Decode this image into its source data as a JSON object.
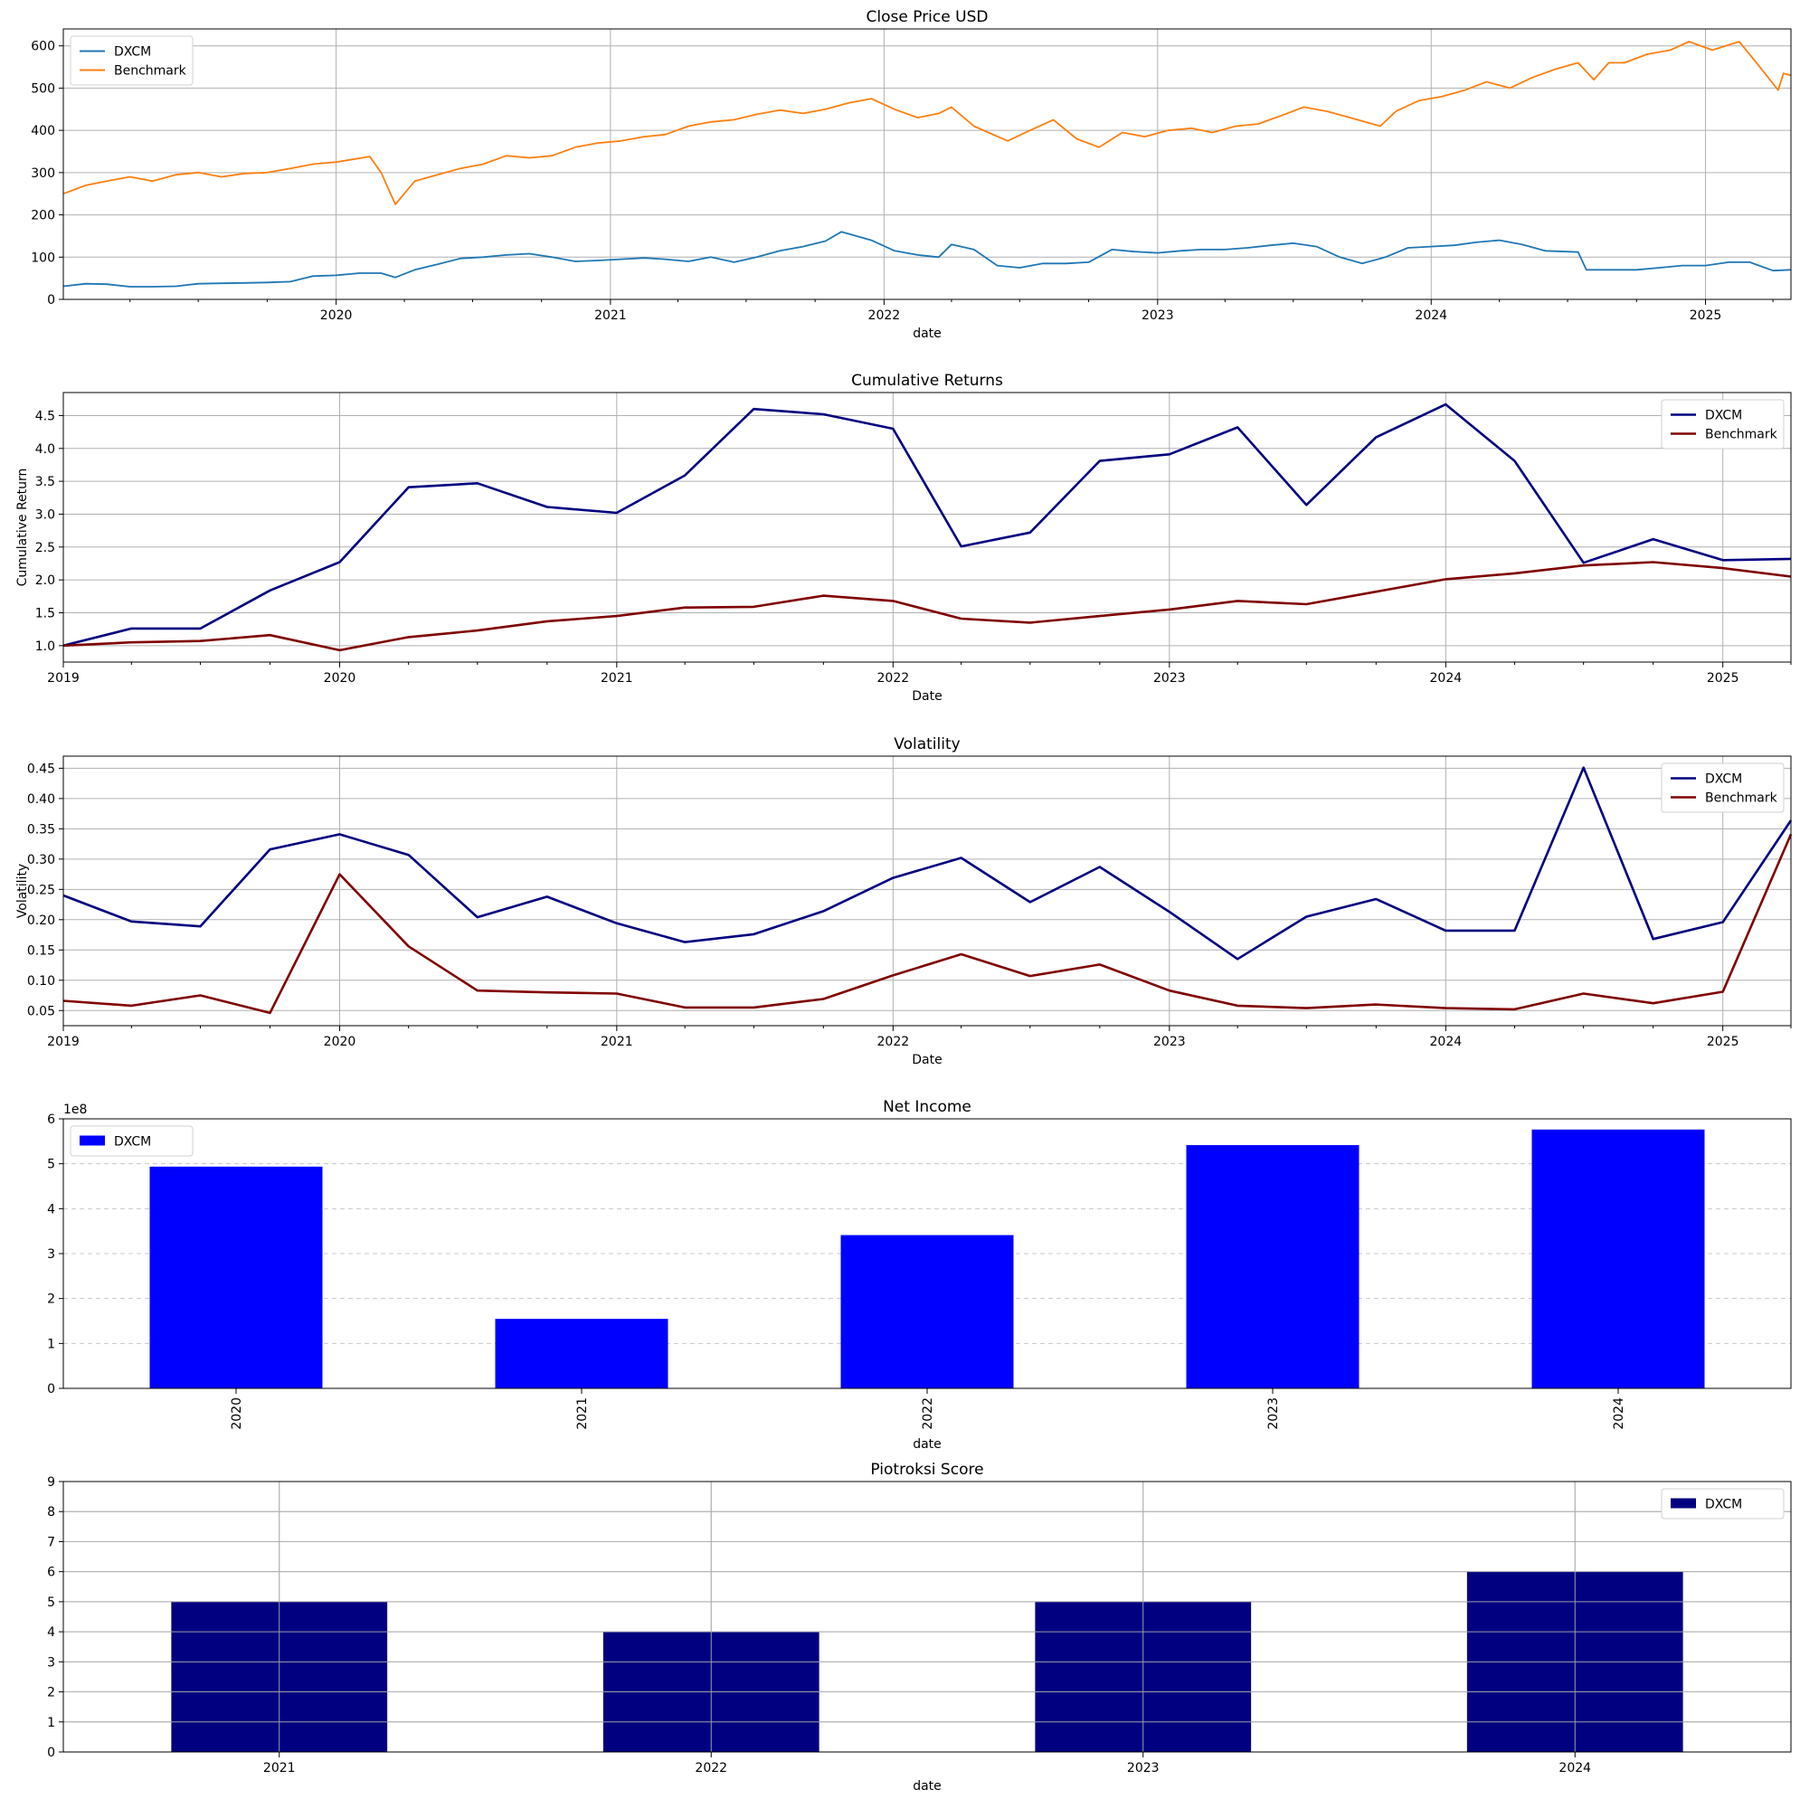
{
  "chart_data": [
    {
      "id": "close_price",
      "type": "line",
      "title": "Close Price USD",
      "xlabel": "date",
      "ylabel": "",
      "x_axis": "date",
      "xlim": [
        "2019-01-02",
        "2025-04-25"
      ],
      "ylim": [
        0,
        640
      ],
      "xticks": [
        "2020",
        "2021",
        "2022",
        "2023",
        "2024",
        "2025"
      ],
      "yticks": [
        0,
        100,
        200,
        300,
        400,
        500,
        600
      ],
      "grid": true,
      "legend_position": "upper-left",
      "series": [
        {
          "name": "DXCM",
          "color": "#1f77b4",
          "points": [
            [
              "2019-01-02",
              31
            ],
            [
              "2019-02-01",
              37
            ],
            [
              "2019-03-01",
              36
            ],
            [
              "2019-04-01",
              30
            ],
            [
              "2019-05-01",
              30
            ],
            [
              "2019-06-01",
              31
            ],
            [
              "2019-07-01",
              37
            ],
            [
              "2019-08-01",
              38
            ],
            [
              "2019-09-01",
              39
            ],
            [
              "2019-10-01",
              40
            ],
            [
              "2019-11-01",
              42
            ],
            [
              "2019-12-01",
              55
            ],
            [
              "2020-01-01",
              57
            ],
            [
              "2020-02-01",
              62
            ],
            [
              "2020-03-01",
              62
            ],
            [
              "2020-03-20",
              52
            ],
            [
              "2020-04-15",
              70
            ],
            [
              "2020-05-15",
              83
            ],
            [
              "2020-06-15",
              97
            ],
            [
              "2020-07-15",
              100
            ],
            [
              "2020-08-15",
              105
            ],
            [
              "2020-09-15",
              108
            ],
            [
              "2020-10-15",
              100
            ],
            [
              "2020-11-15",
              90
            ],
            [
              "2020-12-15",
              92
            ],
            [
              "2021-01-15",
              95
            ],
            [
              "2021-02-15",
              98
            ],
            [
              "2021-03-15",
              95
            ],
            [
              "2021-04-15",
              90
            ],
            [
              "2021-05-15",
              100
            ],
            [
              "2021-06-15",
              88
            ],
            [
              "2021-07-15",
              100
            ],
            [
              "2021-08-15",
              115
            ],
            [
              "2021-09-15",
              125
            ],
            [
              "2021-10-15",
              138
            ],
            [
              "2021-11-05",
              160
            ],
            [
              "2021-12-15",
              140
            ],
            [
              "2022-01-15",
              115
            ],
            [
              "2022-02-15",
              105
            ],
            [
              "2022-03-15",
              100
            ],
            [
              "2022-04-01",
              130
            ],
            [
              "2022-05-01",
              118
            ],
            [
              "2022-06-01",
              80
            ],
            [
              "2022-07-01",
              75
            ],
            [
              "2022-08-01",
              85
            ],
            [
              "2022-09-01",
              85
            ],
            [
              "2022-10-01",
              88
            ],
            [
              "2022-11-01",
              118
            ],
            [
              "2022-12-01",
              113
            ],
            [
              "2023-01-01",
              110
            ],
            [
              "2023-02-01",
              115
            ],
            [
              "2023-03-01",
              118
            ],
            [
              "2023-04-01",
              118
            ],
            [
              "2023-05-01",
              122
            ],
            [
              "2023-06-01",
              128
            ],
            [
              "2023-07-01",
              133
            ],
            [
              "2023-08-01",
              125
            ],
            [
              "2023-09-01",
              100
            ],
            [
              "2023-10-01",
              85
            ],
            [
              "2023-11-01",
              100
            ],
            [
              "2023-12-01",
              122
            ],
            [
              "2024-01-01",
              125
            ],
            [
              "2024-02-01",
              128
            ],
            [
              "2024-03-01",
              135
            ],
            [
              "2024-04-01",
              140
            ],
            [
              "2024-05-01",
              130
            ],
            [
              "2024-06-01",
              115
            ],
            [
              "2024-07-15",
              112
            ],
            [
              "2024-07-26",
              70
            ],
            [
              "2024-09-01",
              70
            ],
            [
              "2024-10-01",
              70
            ],
            [
              "2024-11-01",
              75
            ],
            [
              "2024-12-01",
              80
            ],
            [
              "2025-01-01",
              80
            ],
            [
              "2025-02-01",
              88
            ],
            [
              "2025-03-01",
              88
            ],
            [
              "2025-04-01",
              68
            ],
            [
              "2025-04-25",
              70
            ]
          ]
        },
        {
          "name": "Benchmark",
          "color": "#ff7f0e",
          "points": [
            [
              "2019-01-02",
              250
            ],
            [
              "2019-02-01",
              270
            ],
            [
              "2019-03-01",
              280
            ],
            [
              "2019-04-01",
              290
            ],
            [
              "2019-05-01",
              280
            ],
            [
              "2019-06-01",
              295
            ],
            [
              "2019-07-01",
              300
            ],
            [
              "2019-08-01",
              290
            ],
            [
              "2019-09-01",
              298
            ],
            [
              "2019-10-01",
              300
            ],
            [
              "2019-11-01",
              310
            ],
            [
              "2019-12-01",
              320
            ],
            [
              "2020-01-01",
              325
            ],
            [
              "2020-02-15",
              338
            ],
            [
              "2020-03-01",
              300
            ],
            [
              "2020-03-20",
              225
            ],
            [
              "2020-04-15",
              280
            ],
            [
              "2020-05-15",
              295
            ],
            [
              "2020-06-15",
              310
            ],
            [
              "2020-07-15",
              320
            ],
            [
              "2020-08-15",
              340
            ],
            [
              "2020-09-15",
              335
            ],
            [
              "2020-10-15",
              340
            ],
            [
              "2020-11-15",
              360
            ],
            [
              "2020-12-15",
              370
            ],
            [
              "2021-01-15",
              375
            ],
            [
              "2021-02-15",
              385
            ],
            [
              "2021-03-15",
              390
            ],
            [
              "2021-04-15",
              410
            ],
            [
              "2021-05-15",
              420
            ],
            [
              "2021-06-15",
              425
            ],
            [
              "2021-07-15",
              438
            ],
            [
              "2021-08-15",
              448
            ],
            [
              "2021-09-15",
              440
            ],
            [
              "2021-10-15",
              450
            ],
            [
              "2021-11-15",
              465
            ],
            [
              "2021-12-15",
              475
            ],
            [
              "2022-01-15",
              450
            ],
            [
              "2022-02-15",
              430
            ],
            [
              "2022-03-15",
              440
            ],
            [
              "2022-04-01",
              455
            ],
            [
              "2022-05-01",
              410
            ],
            [
              "2022-06-15",
              375
            ],
            [
              "2022-07-15",
              400
            ],
            [
              "2022-08-15",
              425
            ],
            [
              "2022-09-15",
              380
            ],
            [
              "2022-10-15",
              360
            ],
            [
              "2022-11-15",
              395
            ],
            [
              "2022-12-15",
              385
            ],
            [
              "2023-01-15",
              400
            ],
            [
              "2023-02-15",
              405
            ],
            [
              "2023-03-15",
              395
            ],
            [
              "2023-04-15",
              410
            ],
            [
              "2023-05-15",
              415
            ],
            [
              "2023-06-15",
              435
            ],
            [
              "2023-07-15",
              455
            ],
            [
              "2023-08-15",
              445
            ],
            [
              "2023-09-15",
              430
            ],
            [
              "2023-10-25",
              410
            ],
            [
              "2023-11-15",
              445
            ],
            [
              "2023-12-15",
              470
            ],
            [
              "2024-01-15",
              480
            ],
            [
              "2024-02-15",
              495
            ],
            [
              "2024-03-15",
              515
            ],
            [
              "2024-04-15",
              500
            ],
            [
              "2024-05-15",
              525
            ],
            [
              "2024-06-15",
              545
            ],
            [
              "2024-07-15",
              560
            ],
            [
              "2024-08-05",
              520
            ],
            [
              "2024-08-25",
              560
            ],
            [
              "2024-09-15",
              560
            ],
            [
              "2024-10-15",
              580
            ],
            [
              "2024-11-15",
              590
            ],
            [
              "2024-12-10",
              610
            ],
            [
              "2025-01-10",
              590
            ],
            [
              "2025-02-15",
              610
            ],
            [
              "2025-03-10",
              560
            ],
            [
              "2025-04-08",
              495
            ],
            [
              "2025-04-15",
              535
            ],
            [
              "2025-04-25",
              530
            ]
          ]
        }
      ]
    },
    {
      "id": "cumulative_returns",
      "type": "line",
      "title": "Cumulative Returns",
      "xlabel": "Date",
      "ylabel": "Cumulative Return",
      "x_axis": "date",
      "xlim": [
        "2019-01-01",
        "2025-04-01"
      ],
      "ylim": [
        0.75,
        4.85
      ],
      "xticks": [
        "2019",
        "2020",
        "2021",
        "2022",
        "2023",
        "2024",
        "2025"
      ],
      "yticks": [
        1.0,
        1.5,
        2.0,
        2.5,
        3.0,
        3.5,
        4.0,
        4.5
      ],
      "ytick_labels": [
        "1.0",
        "1.5",
        "2.0",
        "2.5",
        "3.0",
        "3.5",
        "4.0",
        "4.5"
      ],
      "grid": true,
      "legend_position": "upper-right",
      "x": [
        "2019-01-01",
        "2019-04-01",
        "2019-07-01",
        "2019-10-01",
        "2020-01-01",
        "2020-04-01",
        "2020-07-01",
        "2020-10-01",
        "2021-01-01",
        "2021-04-01",
        "2021-07-01",
        "2021-10-01",
        "2022-01-01",
        "2022-04-01",
        "2022-07-01",
        "2022-10-01",
        "2023-01-01",
        "2023-04-01",
        "2023-07-01",
        "2023-10-01",
        "2024-01-01",
        "2024-04-01",
        "2024-07-01",
        "2024-10-01",
        "2025-01-01",
        "2025-04-01"
      ],
      "series": [
        {
          "name": "DXCM",
          "color": "#000080",
          "values": [
            1.0,
            1.26,
            1.26,
            1.84,
            2.27,
            3.41,
            3.47,
            3.11,
            3.02,
            3.59,
            4.6,
            4.52,
            4.3,
            2.51,
            2.72,
            3.81,
            3.91,
            4.32,
            3.14,
            4.17,
            4.67,
            3.81,
            2.26,
            2.62,
            2.3,
            2.32
          ]
        },
        {
          "name": "Benchmark",
          "color": "#800000",
          "values": [
            1.0,
            1.05,
            1.07,
            1.16,
            0.93,
            1.13,
            1.23,
            1.37,
            1.45,
            1.58,
            1.59,
            1.76,
            1.68,
            1.41,
            1.35,
            1.45,
            1.55,
            1.68,
            1.63,
            1.82,
            2.01,
            2.1,
            2.22,
            2.27,
            2.18,
            2.05
          ]
        }
      ]
    },
    {
      "id": "volatility",
      "type": "line",
      "title": "Volatility",
      "xlabel": "Date",
      "ylabel": "Volatility",
      "x_axis": "date",
      "xlim": [
        "2019-01-01",
        "2025-04-01"
      ],
      "ylim": [
        0.025,
        0.47
      ],
      "xticks": [
        "2019",
        "2020",
        "2021",
        "2022",
        "2023",
        "2024",
        "2025"
      ],
      "yticks": [
        0.05,
        0.1,
        0.15,
        0.2,
        0.25,
        0.3,
        0.35,
        0.4,
        0.45
      ],
      "ytick_labels": [
        "0.05",
        "0.10",
        "0.15",
        "0.20",
        "0.25",
        "0.30",
        "0.35",
        "0.40",
        "0.45"
      ],
      "grid": true,
      "legend_position": "upper-right",
      "x": [
        "2019-01-01",
        "2019-04-01",
        "2019-07-01",
        "2019-10-01",
        "2020-01-01",
        "2020-04-01",
        "2020-07-01",
        "2020-10-01",
        "2021-01-01",
        "2021-04-01",
        "2021-07-01",
        "2021-10-01",
        "2022-01-01",
        "2022-04-01",
        "2022-07-01",
        "2022-10-01",
        "2023-01-01",
        "2023-04-01",
        "2023-07-01",
        "2023-10-01",
        "2024-01-01",
        "2024-04-01",
        "2024-07-01",
        "2024-10-01",
        "2025-01-01",
        "2025-04-01"
      ],
      "series": [
        {
          "name": "DXCM",
          "color": "#000080",
          "values": [
            0.24,
            0.197,
            0.189,
            0.316,
            0.341,
            0.307,
            0.204,
            0.238,
            0.194,
            0.163,
            0.176,
            0.214,
            0.269,
            0.302,
            0.229,
            0.287,
            0.213,
            0.135,
            0.205,
            0.234,
            0.182,
            0.182,
            0.451,
            0.168,
            0.196,
            0.364
          ]
        },
        {
          "name": "Benchmark",
          "color": "#800000",
          "values": [
            0.066,
            0.058,
            0.075,
            0.046,
            0.275,
            0.156,
            0.083,
            0.08,
            0.078,
            0.055,
            0.055,
            0.069,
            0.108,
            0.143,
            0.107,
            0.126,
            0.083,
            0.058,
            0.054,
            0.06,
            0.054,
            0.052,
            0.078,
            0.062,
            0.081,
            0.341
          ]
        }
      ]
    },
    {
      "id": "net_income",
      "type": "bar",
      "title": "Net Income",
      "xlabel": "date",
      "ylabel": "",
      "offset_label": "1e8",
      "categories": [
        "2020",
        "2021",
        "2022",
        "2023",
        "2024"
      ],
      "ylim": [
        0,
        600000000
      ],
      "yticks": [
        0,
        100000000,
        200000000,
        300000000,
        400000000,
        500000000,
        600000000
      ],
      "ytick_labels": [
        "0",
        "1",
        "2",
        "3",
        "4",
        "5",
        "6"
      ],
      "grid": "y-dashed",
      "legend_position": "upper-left",
      "xtick_rotation": 90,
      "series": [
        {
          "name": "DXCM",
          "color": "#0000ff",
          "values": [
            493600000,
            154700000,
            341200000,
            541500000,
            576200000
          ]
        }
      ]
    },
    {
      "id": "piotroski",
      "type": "bar",
      "title": "Piotroksi Score",
      "xlabel": "date",
      "ylabel": "",
      "categories": [
        "2021",
        "2022",
        "2023",
        "2024"
      ],
      "ylim": [
        0,
        9
      ],
      "yticks": [
        0,
        1,
        2,
        3,
        4,
        5,
        6,
        7,
        8,
        9
      ],
      "ytick_labels": [
        "0",
        "1",
        "2",
        "3",
        "4",
        "5",
        "6",
        "7",
        "8",
        "9"
      ],
      "grid": true,
      "legend_position": "upper-right",
      "series": [
        {
          "name": "DXCM",
          "color": "#000080",
          "values": [
            5,
            4,
            5,
            6
          ]
        }
      ]
    }
  ]
}
